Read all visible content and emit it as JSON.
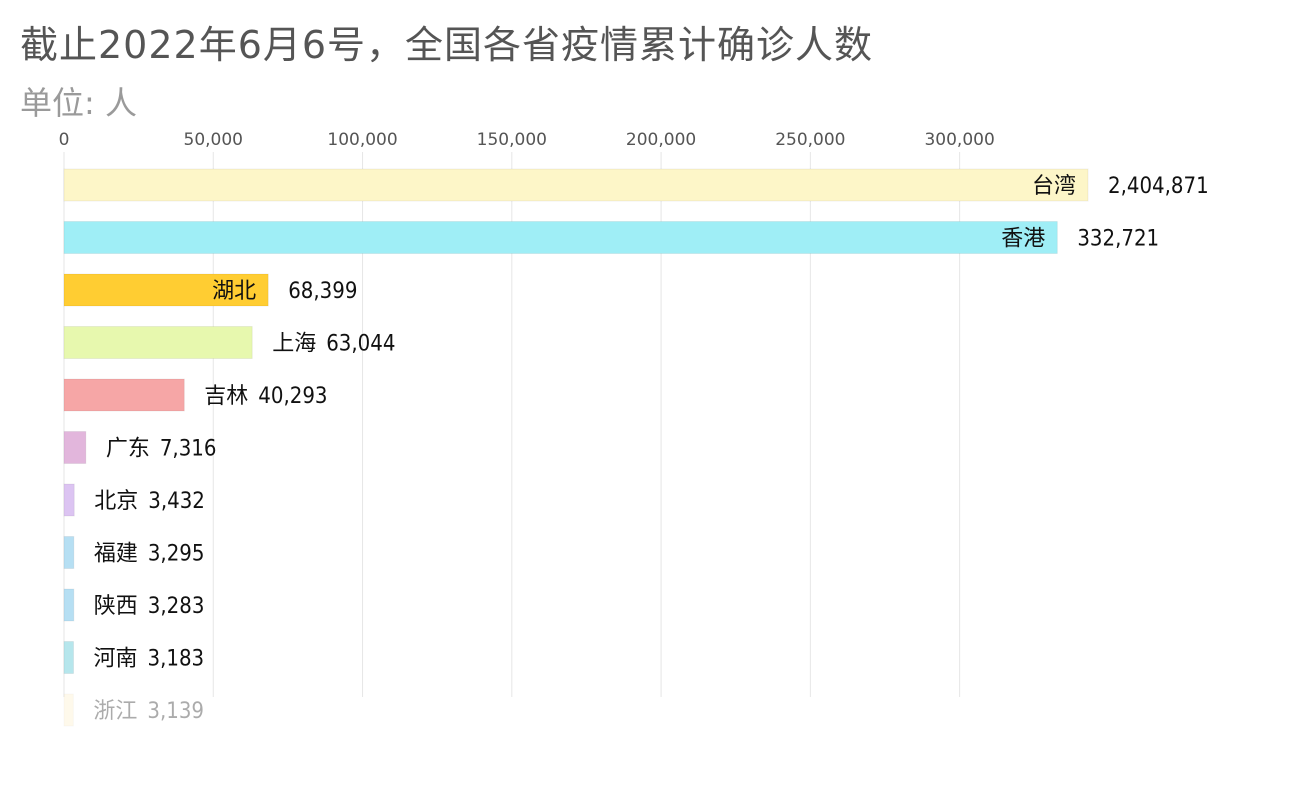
{
  "title": "截止2022年6月6号，全国各省疫情累计确诊人数",
  "subtitle": "单位: 人",
  "chart_data": {
    "type": "bar",
    "orientation": "horizontal",
    "title": "截止2022年6月6号，全国各省疫情累计确诊人数",
    "subtitle": "单位: 人",
    "xlim": [
      0,
      343000
    ],
    "x_ticks": [
      0,
      50000,
      100000,
      150000,
      200000,
      250000,
      300000
    ],
    "x_tick_labels": [
      "0",
      "50,000",
      "100,000",
      "150,000",
      "200,000",
      "250,000",
      "300,000"
    ],
    "grid": true,
    "categories": [
      "台湾",
      "香港",
      "湖北",
      "上海",
      "吉林",
      "广东",
      "北京",
      "福建",
      "陕西",
      "河南",
      "浙江"
    ],
    "values": [
      2404871,
      332721,
      68399,
      63044,
      40293,
      7316,
      3432,
      3295,
      3283,
      3183,
      3139
    ],
    "value_labels": [
      "2,404,871",
      "332,721",
      "68,399",
      "63,044",
      "40,293",
      "7,316",
      "3,432",
      "3,295",
      "3,283",
      "3,183",
      "3,139"
    ],
    "colors": [
      "#fdf6c8",
      "#9feef6",
      "#ffcd32",
      "#e7f8ae",
      "#f6a6a6",
      "#e2b6dc",
      "#dcc4f2",
      "#b6dff3",
      "#b6dff3",
      "#b6e6ec",
      "#fdf0c8"
    ],
    "fading_last_bar": true
  }
}
